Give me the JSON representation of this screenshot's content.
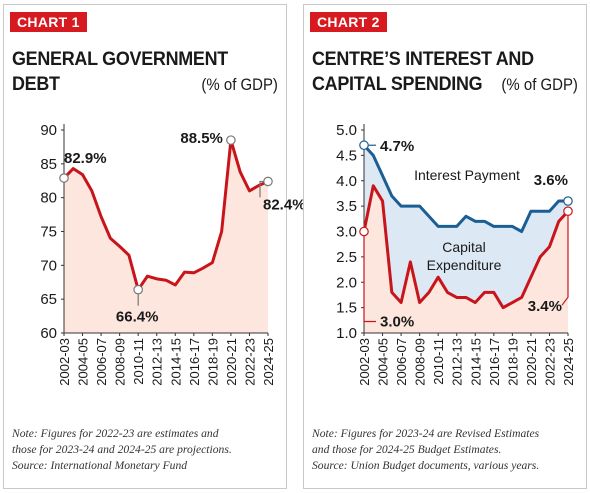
{
  "charts": [
    {
      "badge": "CHART 1",
      "title_lines": [
        "GENERAL GOVERNMENT",
        "DEBT"
      ],
      "unit": "(% of GDP)",
      "note_lines": [
        "Note: Figures for 2022-23 are estimates and",
        "those for 2023-24 and 2024-25 are projections.",
        "Source: International Monetary Fund"
      ]
    },
    {
      "badge": "CHART 2",
      "title_lines": [
        "CENTRE’S INTEREST AND",
        "CAPITAL SPENDING"
      ],
      "unit": "(% of GDP)",
      "note_lines": [
        "Note: Figures for 2023-24 are Revised Estimates",
        "and those for 2024-25 Budget Estimates.",
        "Source: Union Budget documents, various years."
      ]
    }
  ],
  "colors": {
    "badge": "#d71920",
    "debt_line": "#c8151b",
    "debt_fill": "#fde6dd",
    "interest_line": "#1b5e93",
    "interest_fill": "#dce9f5",
    "capex_line": "#c8151b",
    "capex_fill": "#fde6dd"
  },
  "chart_data": [
    {
      "type": "area",
      "title": "GENERAL GOVERNMENT DEBT",
      "ylabel": "(% of GDP)",
      "ylim": [
        60,
        90
      ],
      "yticks": [
        60,
        65,
        70,
        75,
        80,
        85,
        90
      ],
      "x": [
        "2002-03",
        "2003-04",
        "2004-05",
        "2005-06",
        "2006-07",
        "2007-08",
        "2008-09",
        "2009-10",
        "2010-11",
        "2011-12",
        "2012-13",
        "2013-14",
        "2014-15",
        "2015-16",
        "2016-17",
        "2017-18",
        "2018-19",
        "2019-20",
        "2020-21",
        "2021-22",
        "2022-23",
        "2023-24",
        "2024-25"
      ],
      "xtick_labels": [
        "2002-03",
        "2004-05",
        "2006-07",
        "2008-09",
        "2010-11",
        "2012-13",
        "2014-15",
        "2016-17",
        "2018-19",
        "2020-21",
        "2022-23",
        "2024-25"
      ],
      "series": [
        {
          "values": [
            82.9,
            84.3,
            83.4,
            81.0,
            77.2,
            74.0,
            72.8,
            71.5,
            66.4,
            68.4,
            68.0,
            67.8,
            67.1,
            69.0,
            68.9,
            69.6,
            70.4,
            75.0,
            88.5,
            83.8,
            81.0,
            81.8,
            82.4
          ]
        }
      ],
      "annotations": [
        {
          "label": "82.9%",
          "x": "2002-03",
          "y": 82.9
        },
        {
          "label": "66.4%",
          "x": "2010-11",
          "y": 66.4
        },
        {
          "label": "88.5%",
          "x": "2020-21",
          "y": 88.5
        },
        {
          "label": "82.4%",
          "x": "2024-25",
          "y": 82.4
        }
      ],
      "grid": false
    },
    {
      "type": "area",
      "title": "CENTRE’S INTEREST AND CAPITAL SPENDING",
      "ylabel": "(% of GDP)",
      "ylim": [
        1.0,
        5.0
      ],
      "yticks": [
        1.0,
        1.5,
        2.0,
        2.5,
        3.0,
        3.5,
        4.0,
        4.5,
        5.0
      ],
      "x": [
        "2002-03",
        "2003-04",
        "2004-05",
        "2005-06",
        "2006-07",
        "2007-08",
        "2008-09",
        "2009-10",
        "2010-11",
        "2011-12",
        "2012-13",
        "2013-14",
        "2014-15",
        "2015-16",
        "2016-17",
        "2017-18",
        "2018-19",
        "2019-20",
        "2020-21",
        "2021-22",
        "2022-23",
        "2023-24",
        "2024-25"
      ],
      "xtick_labels": [
        "2002-03",
        "2004-05",
        "2006-07",
        "2008-09",
        "2010-11",
        "2012-13",
        "2014-15",
        "2016-17",
        "2018-19",
        "2020-21",
        "2022-23",
        "2024-25"
      ],
      "series": [
        {
          "name": "Interest Payment",
          "values": [
            4.7,
            4.5,
            4.1,
            3.7,
            3.5,
            3.5,
            3.5,
            3.3,
            3.1,
            3.1,
            3.1,
            3.3,
            3.2,
            3.2,
            3.1,
            3.1,
            3.1,
            3.0,
            3.4,
            3.4,
            3.4,
            3.6,
            3.6
          ]
        },
        {
          "name": "Capital Expenditure",
          "values": [
            3.0,
            3.9,
            3.6,
            1.8,
            1.6,
            2.4,
            1.6,
            1.8,
            2.1,
            1.8,
            1.7,
            1.7,
            1.6,
            1.8,
            1.8,
            1.5,
            1.6,
            1.7,
            2.1,
            2.5,
            2.7,
            3.2,
            3.4
          ]
        }
      ],
      "annotations": [
        {
          "label": "4.7%",
          "x": "2002-03",
          "y": 4.7
        },
        {
          "label": "3.0%",
          "x": "2002-03",
          "y": 3.0
        },
        {
          "label": "3.6%",
          "x": "2024-25",
          "y": 3.6
        },
        {
          "label": "3.4%",
          "x": "2024-25",
          "y": 3.4
        }
      ],
      "grid": false
    }
  ]
}
